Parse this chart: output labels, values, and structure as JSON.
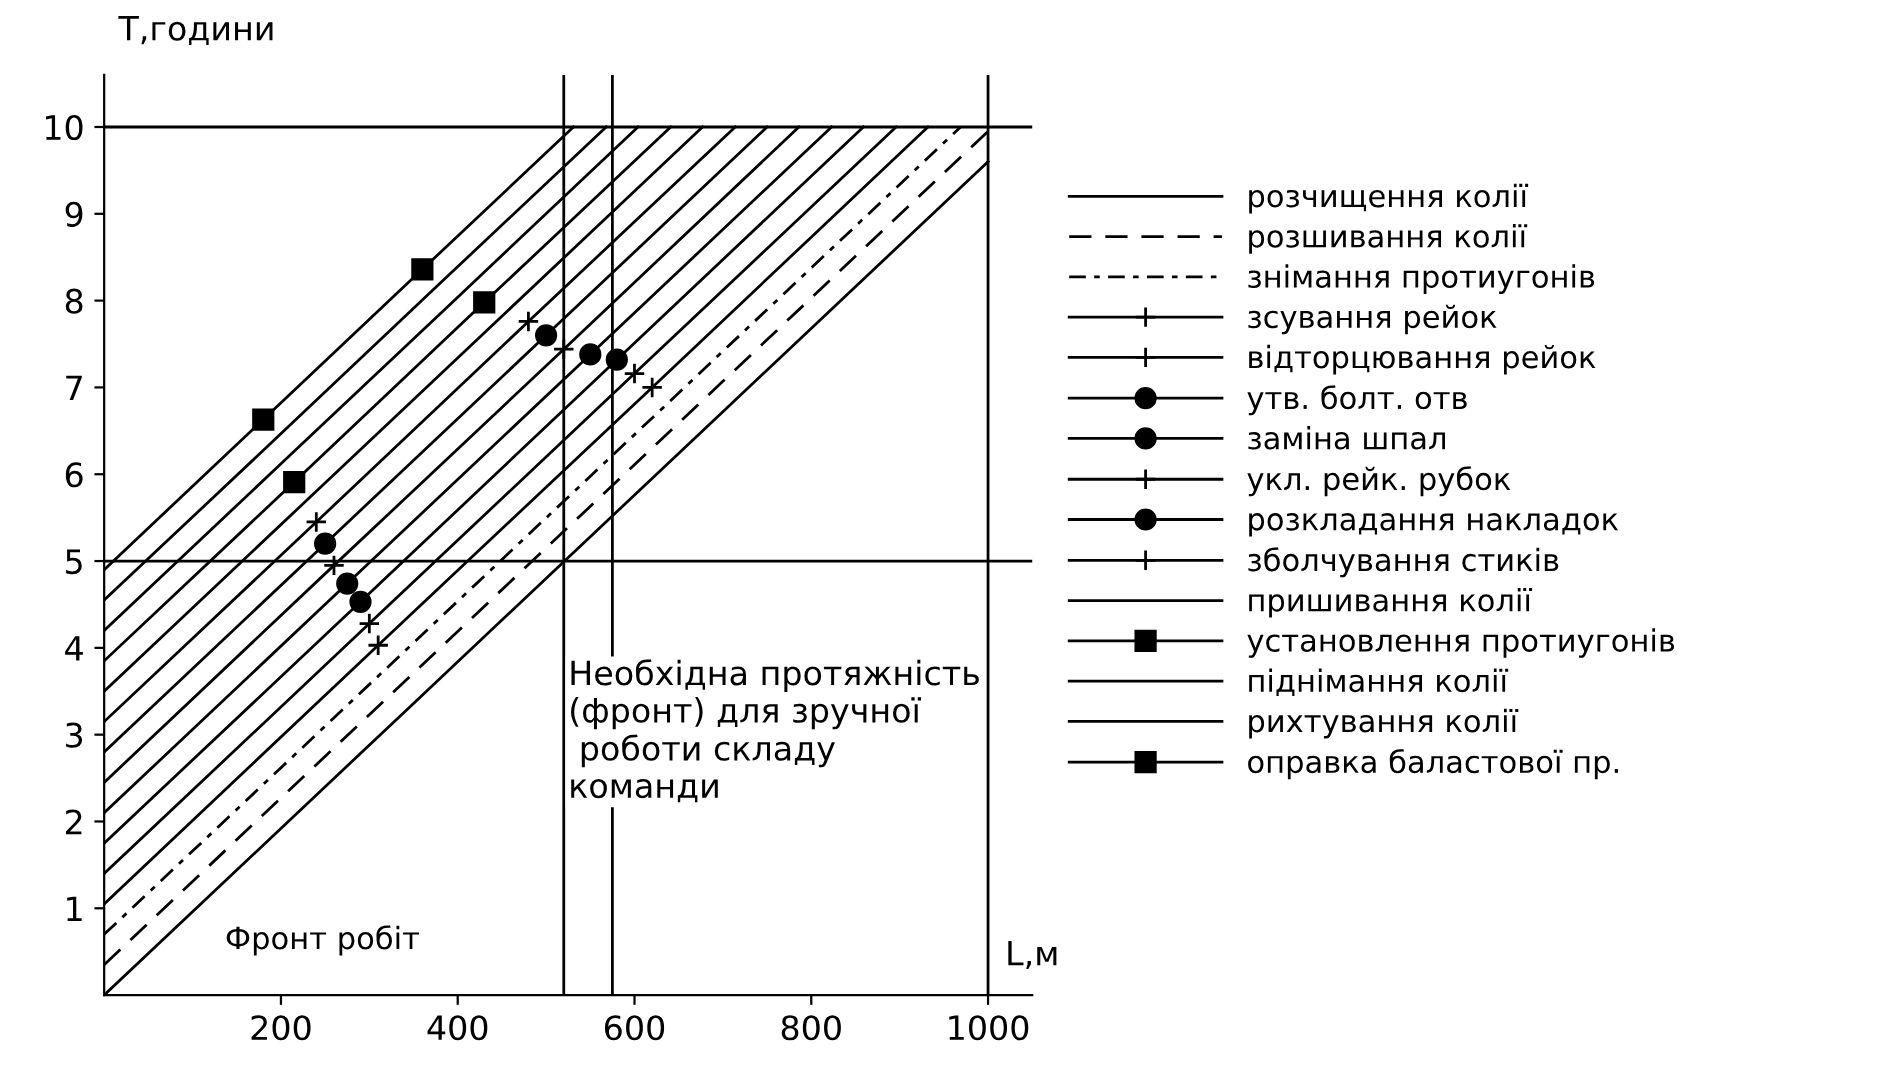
{
  "chart_data": {
    "type": "line",
    "ylabel": "T,години",
    "xlabel": "L,м",
    "xlim": [
      0,
      1050
    ],
    "ylim": [
      0,
      10.6
    ],
    "xticks": [
      200,
      400,
      600,
      800,
      1000
    ],
    "yticks": [
      1,
      2,
      3,
      4,
      5,
      6,
      7,
      8,
      9,
      10
    ],
    "grid": false,
    "legend": "right",
    "series": [
      {
        "name": "розчищення колії",
        "color": "#000000",
        "marker": "none",
        "line_style": "solid",
        "x": [
          0,
          350,
          700,
          1000
        ],
        "values": [
          0,
          3.36,
          6.72,
          9.6
        ]
      },
      {
        "name": "розшивання колії",
        "color": "#000000",
        "marker": "none",
        "line_style": "dashed",
        "x": [
          0,
          350,
          700,
          1000
        ],
        "values": [
          0.35,
          3.71,
          7.07,
          9.95
        ]
      },
      {
        "name": "знімання протиугонів",
        "color": "#000000",
        "marker": "none",
        "line_style": "dotted",
        "x": [
          0,
          320,
          640,
          969
        ],
        "values": [
          0.7,
          3.77,
          6.84,
          10
        ]
      },
      {
        "name": "зсування рейок",
        "color": "#000000",
        "marker": "cross",
        "line_style": "solid",
        "x": [
          0,
          310,
          620,
          932
        ],
        "values": [
          1.05,
          4.03,
          7.0,
          10
        ]
      },
      {
        "name": "відторцювання рейок",
        "color": "#000000",
        "marker": "cross",
        "line_style": "solid",
        "x": [
          0,
          300,
          600,
          896
        ],
        "values": [
          1.4,
          4.28,
          7.16,
          10
        ]
      },
      {
        "name": "утв. болт. отв",
        "color": "#000000",
        "marker": "circle",
        "line_style": "solid",
        "x": [
          0,
          290,
          580,
          859
        ],
        "values": [
          1.75,
          4.53,
          7.32,
          10
        ]
      },
      {
        "name": "заміна шпал",
        "color": "#000000",
        "marker": "circle",
        "line_style": "solid",
        "x": [
          0,
          275,
          550,
          823
        ],
        "values": [
          2.1,
          4.74,
          7.38,
          10
        ]
      },
      {
        "name": "укл. рейк. рубок",
        "color": "#000000",
        "marker": "cross",
        "line_style": "solid",
        "x": [
          0,
          260,
          520,
          786
        ],
        "values": [
          2.45,
          4.95,
          7.44,
          10
        ]
      },
      {
        "name": "розкладання накладок",
        "color": "#000000",
        "marker": "circle",
        "line_style": "solid",
        "x": [
          0,
          250,
          500,
          750
        ],
        "values": [
          2.8,
          5.2,
          7.6,
          10
        ]
      },
      {
        "name": "зболчування стиків",
        "color": "#000000",
        "marker": "cross",
        "line_style": "solid",
        "x": [
          0,
          240,
          480,
          714
        ],
        "values": [
          3.15,
          5.45,
          7.76,
          10
        ]
      },
      {
        "name": "пришивання колії",
        "color": "#000000",
        "marker": "none",
        "line_style": "solid",
        "x": [
          0,
          225,
          450,
          677
        ],
        "values": [
          3.5,
          5.66,
          7.82,
          10
        ]
      },
      {
        "name": "установлення протиугонів",
        "color": "#000000",
        "marker": "square",
        "line_style": "solid",
        "x": [
          0,
          215,
          430,
          641
        ],
        "values": [
          3.85,
          5.91,
          7.98,
          10
        ]
      },
      {
        "name": "піднімання колії",
        "color": "#000000",
        "marker": "none",
        "line_style": "solid",
        "x": [
          0,
          200,
          400,
          604
        ],
        "values": [
          4.2,
          6.12,
          8.04,
          10
        ]
      },
      {
        "name": "рихтування колії",
        "color": "#000000",
        "marker": "none",
        "line_style": "solid",
        "x": [
          0,
          190,
          380,
          568
        ],
        "values": [
          4.55,
          6.37,
          8.2,
          10
        ]
      },
      {
        "name": "оправка баластової пр.",
        "color": "#000000",
        "marker": "square",
        "line_style": "solid",
        "x": [
          0,
          180,
          360,
          531
        ],
        "values": [
          4.9,
          6.63,
          8.36,
          10
        ]
      }
    ],
    "ref_lines": [
      {
        "axis": "x",
        "value": 520
      },
      {
        "axis": "x",
        "value": 575
      },
      {
        "axis": "x",
        "value": 1000
      },
      {
        "axis": "y",
        "value": 5
      },
      {
        "axis": "y",
        "value": 10
      }
    ],
    "annotations": [
      "Фронт робіт",
      "Необхідна протяжність\n(фронт) для зручної\n роботи складу\nкоманди"
    ]
  }
}
